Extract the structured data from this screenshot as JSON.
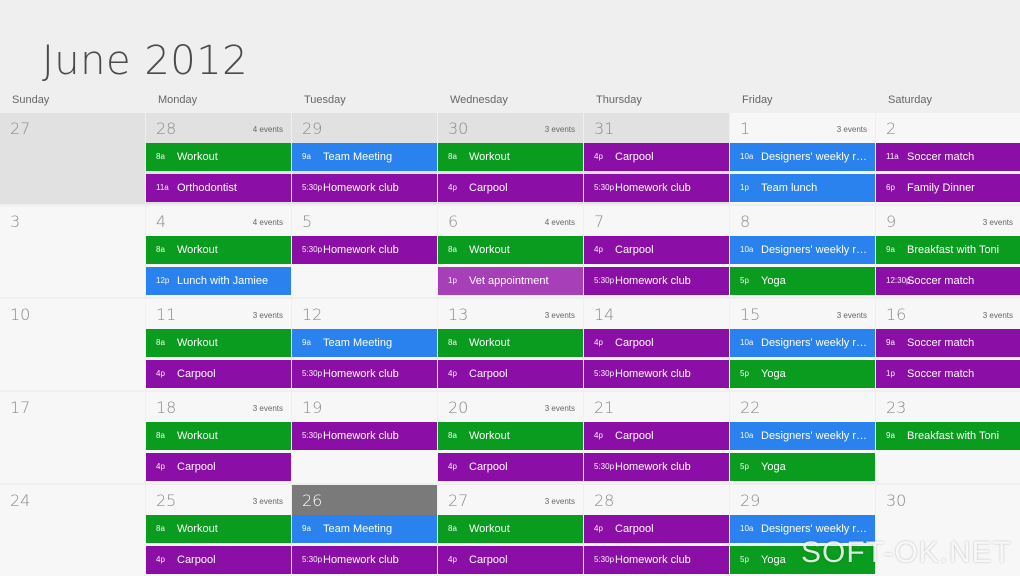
{
  "title": "June 2012",
  "weekdays": [
    "Sunday",
    "Monday",
    "Tuesday",
    "Wednesday",
    "Thursday",
    "Friday",
    "Saturday"
  ],
  "colors": {
    "green": "#0a9c1e",
    "purple": "#8b0fa6",
    "blue": "#2a82ee",
    "purple_light": "#a73fb8",
    "today": "#7a7a7a"
  },
  "weeks": [
    [
      {
        "day": "27",
        "past": true,
        "count": "",
        "events": []
      },
      {
        "day": "28",
        "past": true,
        "count": "4 events",
        "events": [
          {
            "time": "8a",
            "name": "Workout",
            "color": "green"
          },
          {
            "time": "11a",
            "name": "Orthodontist",
            "color": "purple"
          }
        ]
      },
      {
        "day": "29",
        "past": true,
        "count": "",
        "events": [
          {
            "time": "9a",
            "name": "Team Meeting",
            "color": "blue"
          },
          {
            "time": "5:30p",
            "name": "Homework club",
            "color": "purple"
          }
        ]
      },
      {
        "day": "30",
        "past": true,
        "count": "3 events",
        "events": [
          {
            "time": "8a",
            "name": "Workout",
            "color": "green"
          },
          {
            "time": "4p",
            "name": "Carpool",
            "color": "purple"
          }
        ]
      },
      {
        "day": "31",
        "past": true,
        "count": "",
        "events": [
          {
            "time": "4p",
            "name": "Carpool",
            "color": "purple"
          },
          {
            "time": "5:30p",
            "name": "Homework club",
            "color": "purple"
          }
        ]
      },
      {
        "day": "1",
        "past": false,
        "count": "3 events",
        "events": [
          {
            "time": "10a",
            "name": "Designers' weekly re...",
            "color": "blue"
          },
          {
            "time": "1p",
            "name": "Team lunch",
            "color": "blue"
          }
        ]
      },
      {
        "day": "2",
        "past": false,
        "count": "",
        "events": [
          {
            "time": "11a",
            "name": "Soccer match",
            "color": "purple"
          },
          {
            "time": "6p",
            "name": "Family Dinner",
            "color": "purple"
          }
        ]
      }
    ],
    [
      {
        "day": "3",
        "past": false,
        "count": "",
        "events": []
      },
      {
        "day": "4",
        "past": false,
        "count": "4 events",
        "events": [
          {
            "time": "8a",
            "name": "Workout",
            "color": "green"
          },
          {
            "time": "12p",
            "name": "Lunch with Jamiee",
            "color": "blue"
          }
        ]
      },
      {
        "day": "5",
        "past": false,
        "count": "",
        "events": [
          {
            "time": "5:30p",
            "name": "Homework club",
            "color": "purple"
          }
        ]
      },
      {
        "day": "6",
        "past": false,
        "count": "4 events",
        "events": [
          {
            "time": "8a",
            "name": "Workout",
            "color": "green"
          },
          {
            "time": "1p",
            "name": "Vet appointment",
            "color": "purple_light"
          }
        ]
      },
      {
        "day": "7",
        "past": false,
        "count": "",
        "events": [
          {
            "time": "4p",
            "name": "Carpool",
            "color": "purple"
          },
          {
            "time": "5:30p",
            "name": "Homework club",
            "color": "purple"
          }
        ]
      },
      {
        "day": "8",
        "past": false,
        "count": "",
        "events": [
          {
            "time": "10a",
            "name": "Designers' weekly re...",
            "color": "blue"
          },
          {
            "time": "5p",
            "name": "Yoga",
            "color": "green"
          }
        ]
      },
      {
        "day": "9",
        "past": false,
        "count": "3 events",
        "events": [
          {
            "time": "9a",
            "name": "Breakfast with Toni",
            "color": "green"
          },
          {
            "time": "12:30p",
            "name": "Soccer match",
            "color": "purple"
          }
        ]
      }
    ],
    [
      {
        "day": "10",
        "past": false,
        "count": "",
        "events": []
      },
      {
        "day": "11",
        "past": false,
        "count": "3 events",
        "events": [
          {
            "time": "8a",
            "name": "Workout",
            "color": "green"
          },
          {
            "time": "4p",
            "name": "Carpool",
            "color": "purple"
          }
        ]
      },
      {
        "day": "12",
        "past": false,
        "count": "",
        "events": [
          {
            "time": "9a",
            "name": "Team Meeting",
            "color": "blue"
          },
          {
            "time": "5:30p",
            "name": "Homework club",
            "color": "purple"
          }
        ]
      },
      {
        "day": "13",
        "past": false,
        "count": "3 events",
        "events": [
          {
            "time": "8a",
            "name": "Workout",
            "color": "green"
          },
          {
            "time": "4p",
            "name": "Carpool",
            "color": "purple"
          }
        ]
      },
      {
        "day": "14",
        "past": false,
        "count": "",
        "events": [
          {
            "time": "4p",
            "name": "Carpool",
            "color": "purple"
          },
          {
            "time": "5:30p",
            "name": "Homework club",
            "color": "purple"
          }
        ]
      },
      {
        "day": "15",
        "past": false,
        "count": "3 events",
        "events": [
          {
            "time": "10a",
            "name": "Designers' weekly re...",
            "color": "blue"
          },
          {
            "time": "5p",
            "name": "Yoga",
            "color": "green"
          }
        ]
      },
      {
        "day": "16",
        "past": false,
        "count": "3 events",
        "events": [
          {
            "time": "9a",
            "name": "Soccer match",
            "color": "purple"
          },
          {
            "time": "1p",
            "name": "Soccer match",
            "color": "purple"
          }
        ]
      }
    ],
    [
      {
        "day": "17",
        "past": false,
        "count": "",
        "events": []
      },
      {
        "day": "18",
        "past": false,
        "count": "3 events",
        "events": [
          {
            "time": "8a",
            "name": "Workout",
            "color": "green"
          },
          {
            "time": "4p",
            "name": "Carpool",
            "color": "purple"
          }
        ]
      },
      {
        "day": "19",
        "past": false,
        "count": "",
        "events": [
          {
            "time": "5:30p",
            "name": "Homework club",
            "color": "purple"
          }
        ]
      },
      {
        "day": "20",
        "past": false,
        "count": "3 events",
        "events": [
          {
            "time": "8a",
            "name": "Workout",
            "color": "green"
          },
          {
            "time": "4p",
            "name": "Carpool",
            "color": "purple"
          }
        ]
      },
      {
        "day": "21",
        "past": false,
        "count": "",
        "events": [
          {
            "time": "4p",
            "name": "Carpool",
            "color": "purple"
          },
          {
            "time": "5:30p",
            "name": "Homework club",
            "color": "purple"
          }
        ]
      },
      {
        "day": "22",
        "past": false,
        "count": "",
        "events": [
          {
            "time": "10a",
            "name": "Designers' weekly re...",
            "color": "blue"
          },
          {
            "time": "5p",
            "name": "Yoga",
            "color": "green"
          }
        ]
      },
      {
        "day": "23",
        "past": false,
        "count": "",
        "events": [
          {
            "time": "9a",
            "name": "Breakfast with Toni",
            "color": "green"
          }
        ]
      }
    ],
    [
      {
        "day": "24",
        "past": false,
        "count": "",
        "events": []
      },
      {
        "day": "25",
        "past": false,
        "count": "3 events",
        "events": [
          {
            "time": "8a",
            "name": "Workout",
            "color": "green"
          },
          {
            "time": "4p",
            "name": "Carpool",
            "color": "purple"
          }
        ]
      },
      {
        "day": "26",
        "past": false,
        "today": true,
        "count": "",
        "events": [
          {
            "time": "9a",
            "name": "Team Meeting",
            "color": "blue"
          },
          {
            "time": "5:30p",
            "name": "Homework club",
            "color": "purple"
          }
        ]
      },
      {
        "day": "27",
        "past": false,
        "count": "3 events",
        "events": [
          {
            "time": "8a",
            "name": "Workout",
            "color": "green"
          },
          {
            "time": "4p",
            "name": "Carpool",
            "color": "purple"
          }
        ]
      },
      {
        "day": "28",
        "past": false,
        "count": "",
        "events": [
          {
            "time": "4p",
            "name": "Carpool",
            "color": "purple"
          },
          {
            "time": "5:30p",
            "name": "Homework club",
            "color": "purple"
          }
        ]
      },
      {
        "day": "29",
        "past": false,
        "count": "",
        "events": [
          {
            "time": "10a",
            "name": "Designers' weekly re...",
            "color": "blue"
          },
          {
            "time": "5p",
            "name": "Yoga",
            "color": "green"
          }
        ]
      },
      {
        "day": "30",
        "past": false,
        "count": "",
        "events": []
      }
    ]
  ],
  "watermark": "SOFT-OK.NET"
}
